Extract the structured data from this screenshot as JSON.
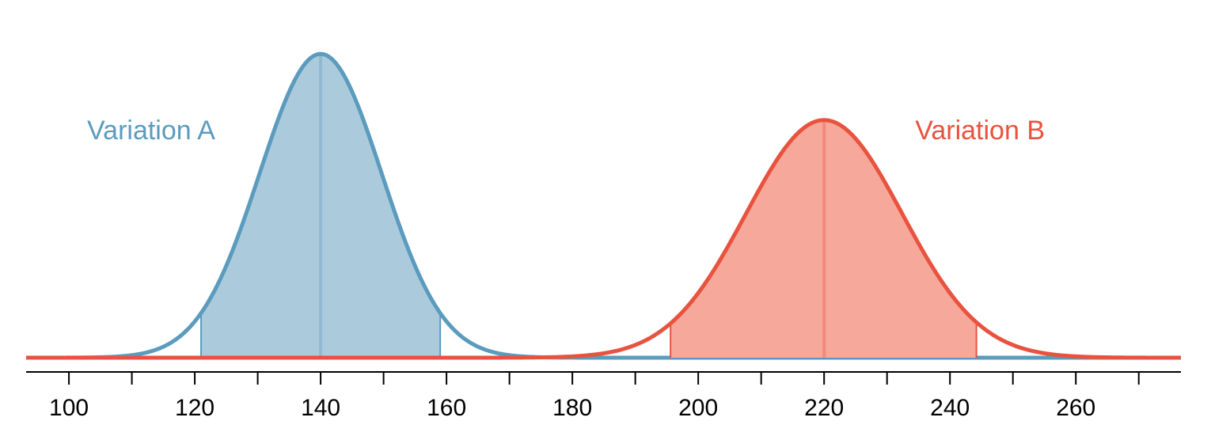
{
  "chart_data": {
    "type": "normal",
    "xlim": [
      93.2,
      276.7
    ],
    "xticks": [
      100,
      120,
      140,
      160,
      180,
      200,
      220,
      240,
      260
    ],
    "minor_xticks": [
      110,
      130,
      150,
      170,
      190,
      210,
      230,
      250,
      270
    ],
    "ylim": [
      0,
      0.045
    ],
    "series": [
      {
        "name": "Variation A",
        "color": "#5b9bbd",
        "fill_color": "#abcbdd",
        "mean": 140,
        "sd": 9.7,
        "shade": [
          121,
          159
        ]
      },
      {
        "name": "Variation B",
        "color": "#e8533f",
        "fill_color": "#f6a89b",
        "mean": 220,
        "sd": 12.4,
        "shade": [
          195.6,
          244.2
        ]
      }
    ]
  }
}
